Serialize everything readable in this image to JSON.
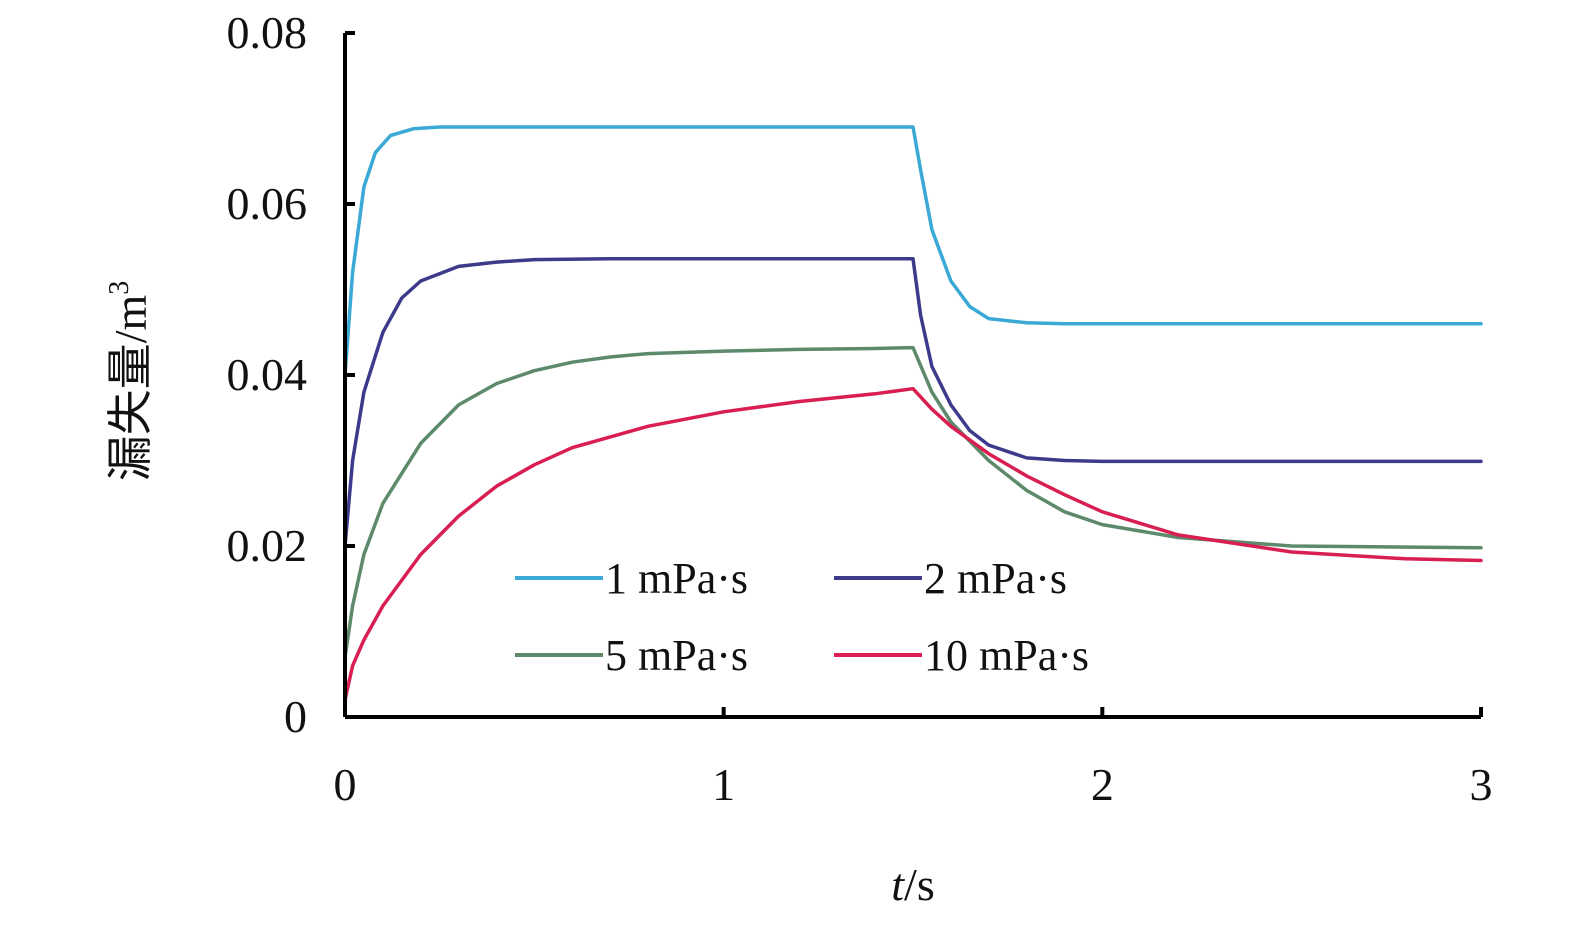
{
  "chart_data": {
    "type": "line",
    "ylabel_main": "漏失量/m",
    "ylabel_sup": "3",
    "xlabel_italic": "t",
    "xlabel_rest": "/s",
    "xlim": [
      0,
      3
    ],
    "ylim": [
      0,
      0.08
    ],
    "xticks": [
      "0",
      "1",
      "2",
      "3"
    ],
    "yticks": [
      "0",
      "0.02",
      "0.04",
      "0.06",
      "0.08"
    ],
    "grid": false,
    "legend_position": "bottom-center",
    "series": [
      {
        "name": "1 mPa·s",
        "color": "#3aa9d6",
        "x": [
          0,
          0.02,
          0.05,
          0.08,
          0.12,
          0.18,
          0.25,
          0.4,
          0.7,
          1.0,
          1.3,
          1.5,
          1.52,
          1.55,
          1.6,
          1.65,
          1.7,
          1.8,
          1.9,
          2.0,
          2.5,
          3.0
        ],
        "y": [
          0.04,
          0.052,
          0.062,
          0.066,
          0.068,
          0.0688,
          0.069,
          0.069,
          0.069,
          0.069,
          0.069,
          0.069,
          0.064,
          0.057,
          0.051,
          0.048,
          0.0466,
          0.0461,
          0.046,
          0.046,
          0.046,
          0.046
        ]
      },
      {
        "name": "2 mPa·s",
        "color": "#3d3a8c",
        "x": [
          0,
          0.02,
          0.05,
          0.1,
          0.15,
          0.2,
          0.3,
          0.4,
          0.5,
          0.7,
          1.0,
          1.3,
          1.5,
          1.52,
          1.55,
          1.6,
          1.65,
          1.7,
          1.8,
          1.9,
          2.0,
          2.2,
          2.5,
          3.0
        ],
        "y": [
          0.02,
          0.03,
          0.038,
          0.045,
          0.049,
          0.051,
          0.0527,
          0.0532,
          0.0535,
          0.0536,
          0.0536,
          0.0536,
          0.0536,
          0.047,
          0.041,
          0.0365,
          0.0335,
          0.0318,
          0.0303,
          0.03,
          0.0299,
          0.0299,
          0.0299,
          0.0299
        ]
      },
      {
        "name": "5 mPa·s",
        "color": "#5d8a6a",
        "x": [
          0,
          0.02,
          0.05,
          0.1,
          0.2,
          0.3,
          0.4,
          0.5,
          0.6,
          0.7,
          0.8,
          1.0,
          1.2,
          1.4,
          1.5,
          1.55,
          1.6,
          1.7,
          1.8,
          1.9,
          2.0,
          2.2,
          2.5,
          3.0
        ],
        "y": [
          0.007,
          0.013,
          0.019,
          0.025,
          0.032,
          0.0365,
          0.039,
          0.0405,
          0.0415,
          0.0421,
          0.0425,
          0.0428,
          0.043,
          0.0431,
          0.0432,
          0.038,
          0.0345,
          0.03,
          0.0265,
          0.024,
          0.0225,
          0.021,
          0.02,
          0.0198
        ]
      },
      {
        "name": "10 mPa·s",
        "color": "#d91e52",
        "x": [
          0,
          0.02,
          0.05,
          0.1,
          0.2,
          0.3,
          0.4,
          0.5,
          0.6,
          0.8,
          1.0,
          1.2,
          1.4,
          1.5,
          1.55,
          1.6,
          1.7,
          1.8,
          1.9,
          2.0,
          2.2,
          2.5,
          2.8,
          3.0
        ],
        "y": [
          0.002,
          0.006,
          0.009,
          0.013,
          0.019,
          0.0235,
          0.027,
          0.0295,
          0.0315,
          0.034,
          0.0357,
          0.0369,
          0.0378,
          0.0384,
          0.036,
          0.034,
          0.0308,
          0.0282,
          0.026,
          0.024,
          0.0213,
          0.0193,
          0.0185,
          0.0183
        ]
      }
    ]
  }
}
